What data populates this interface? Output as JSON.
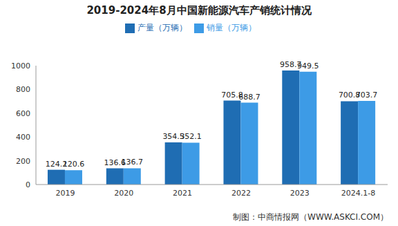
{
  "chart_data": {
    "type": "bar",
    "title": "2019-2024年8月中国新能源汽车产销统计情况",
    "source": "制图：中商情报网（WWW.ASKCI.COM）",
    "categories": [
      "2019",
      "2020",
      "2021",
      "2022",
      "2023",
      "2024.1-8"
    ],
    "series": [
      {
        "name": "产量（万辆）",
        "color": "#1f6db3",
        "values": [
          124.2,
          136.6,
          354.5,
          705.8,
          958.7,
          700.8
        ]
      },
      {
        "name": "销量（万辆）",
        "color": "#3d9be6",
        "values": [
          120.6,
          136.7,
          352.1,
          688.7,
          949.5,
          703.7
        ]
      }
    ],
    "ylim": [
      0,
      1000
    ],
    "yticks": [
      0,
      200,
      400,
      600,
      800,
      1000
    ],
    "grid": false,
    "data_labels": true,
    "legend": "top"
  }
}
